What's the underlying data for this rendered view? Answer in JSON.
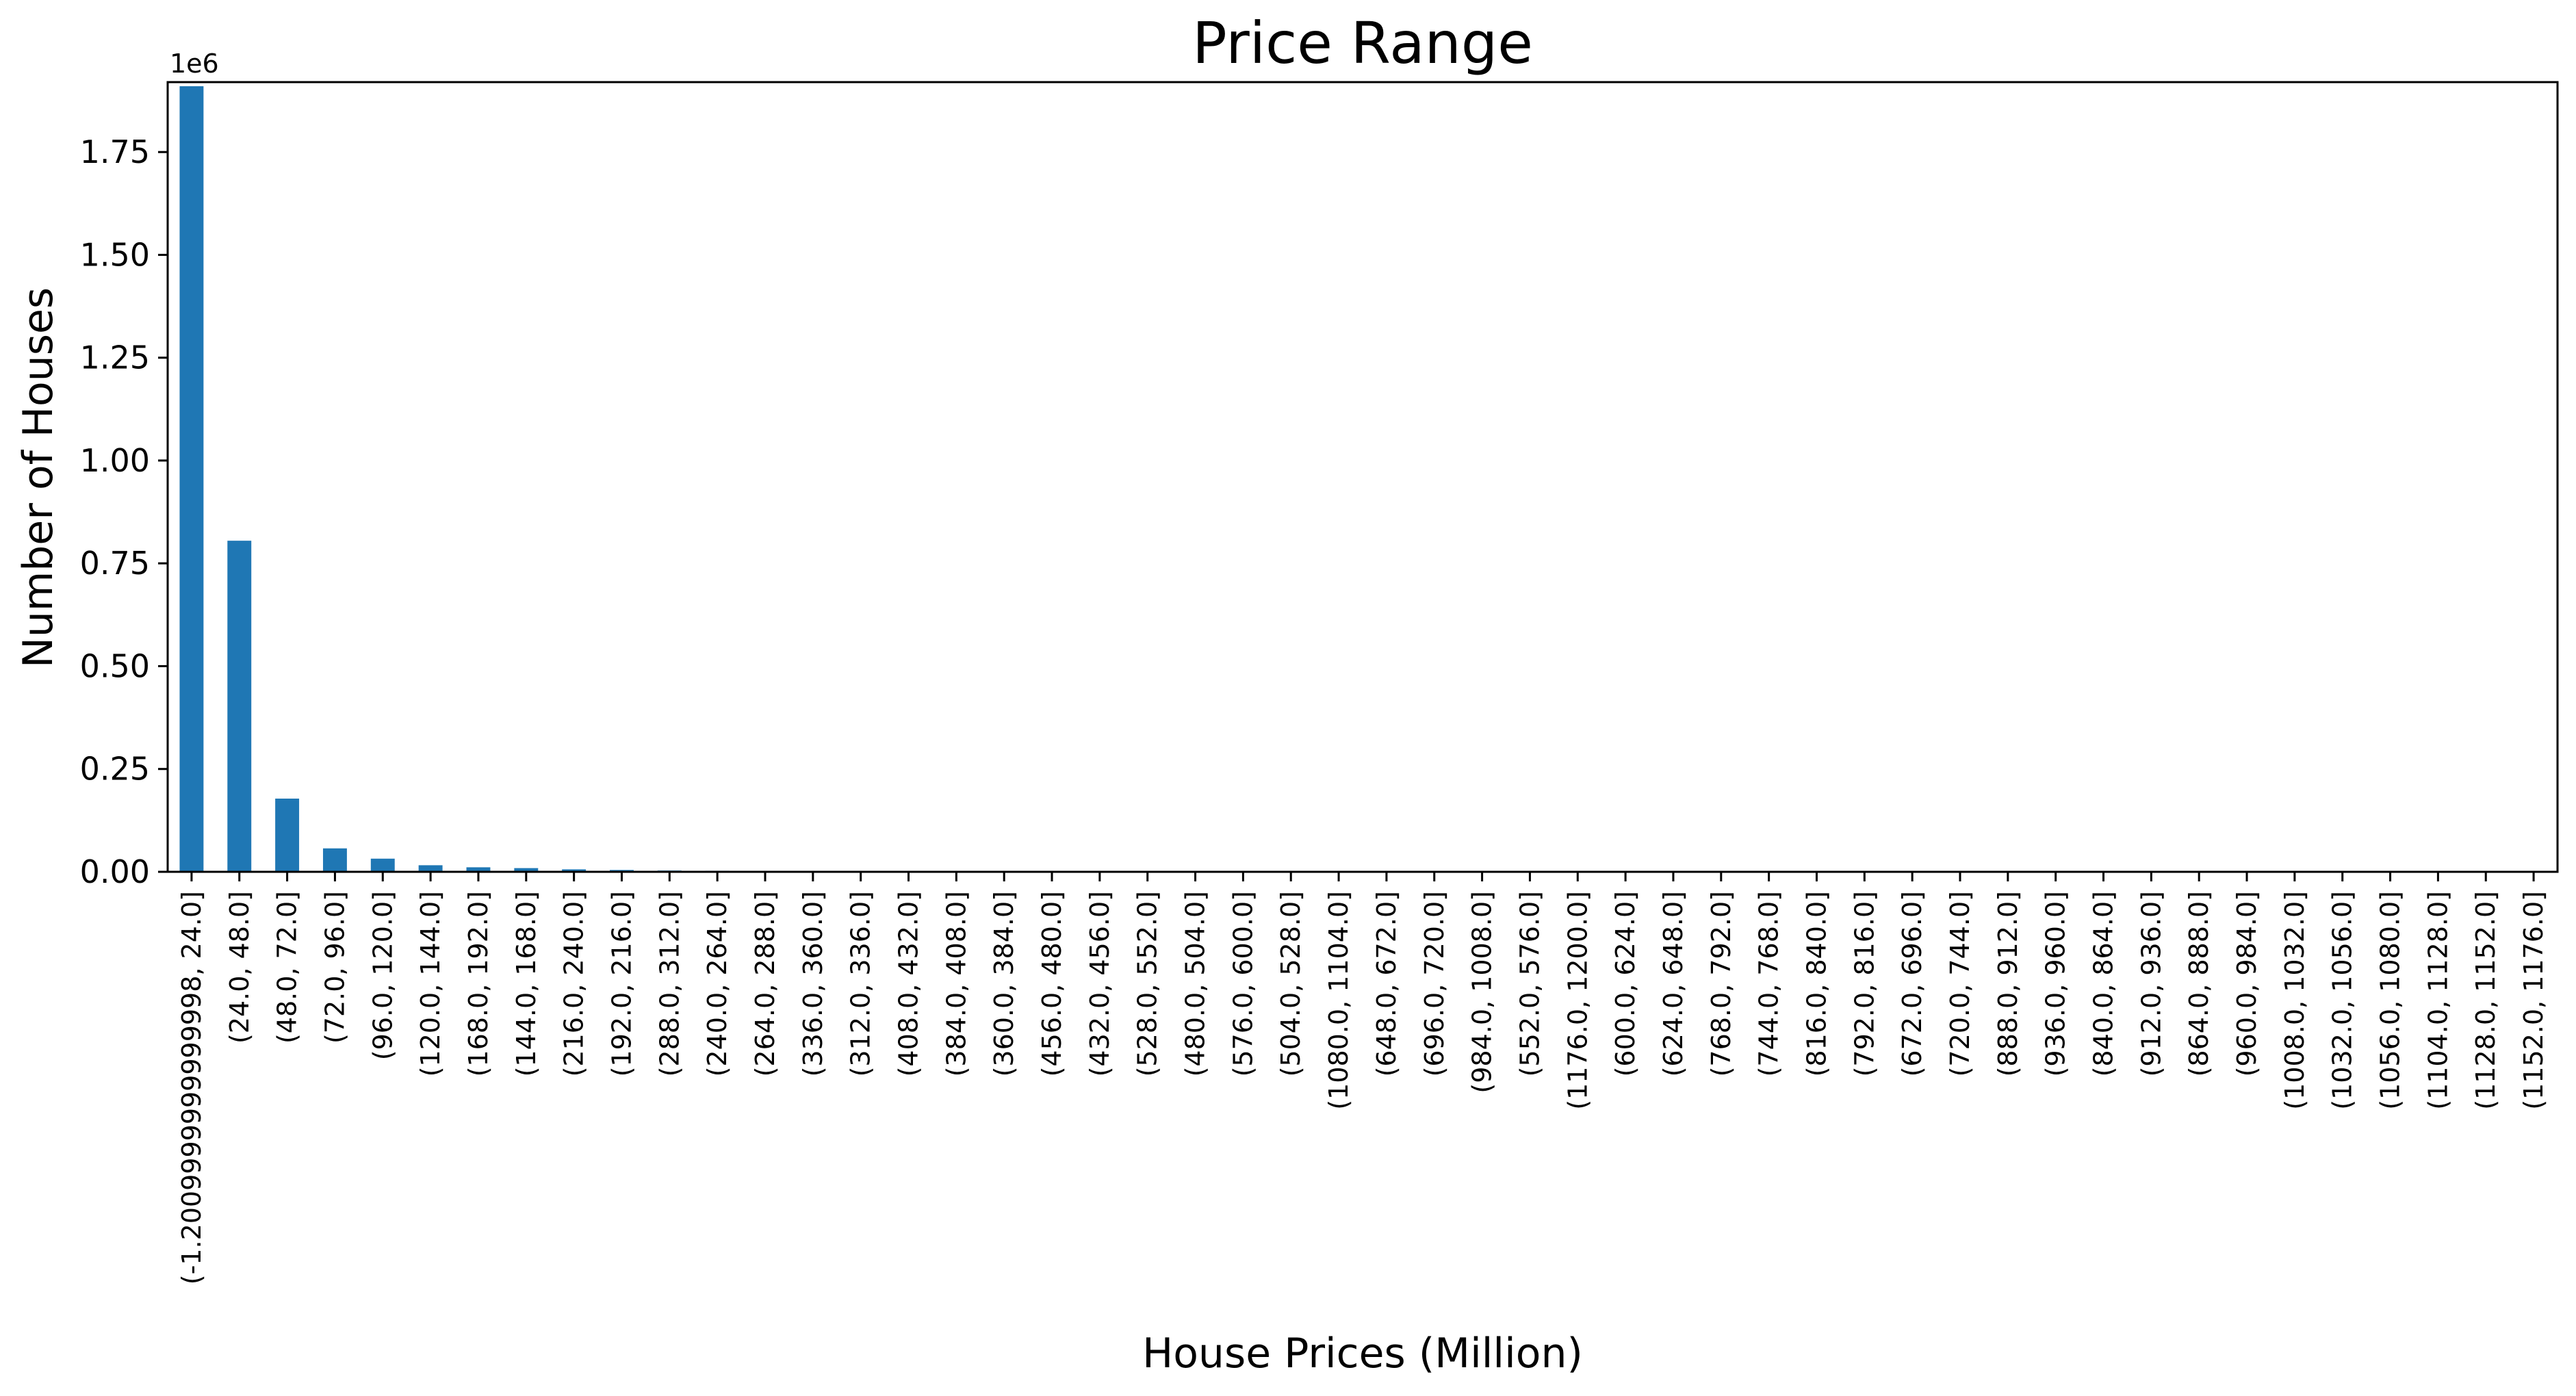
{
  "chart_data": {
    "type": "bar",
    "title": "Price Range",
    "xlabel": "House Prices (Million)",
    "ylabel": "Number of Houses",
    "y_offset_label": "1e6",
    "ylim": [
      0,
      1.92
    ],
    "yticks": [
      0.0,
      0.25,
      0.5,
      0.75,
      1.0,
      1.25,
      1.5,
      1.75
    ],
    "ytick_labels": [
      "0.00",
      "0.25",
      "0.50",
      "0.75",
      "1.00",
      "1.25",
      "1.50",
      "1.75"
    ],
    "grid": false,
    "legend": "none",
    "bar_color": "#1f77b4",
    "categories": [
      "(-1.2009999999999998, 24.0]",
      "(24.0, 48.0]",
      "(48.0, 72.0]",
      "(72.0, 96.0]",
      "(96.0, 120.0]",
      "(120.0, 144.0]",
      "(168.0, 192.0]",
      "(144.0, 168.0]",
      "(216.0, 240.0]",
      "(192.0, 216.0]",
      "(288.0, 312.0]",
      "(240.0, 264.0]",
      "(264.0, 288.0]",
      "(336.0, 360.0]",
      "(312.0, 336.0]",
      "(408.0, 432.0]",
      "(384.0, 408.0]",
      "(360.0, 384.0]",
      "(456.0, 480.0]",
      "(432.0, 456.0]",
      "(528.0, 552.0]",
      "(480.0, 504.0]",
      "(576.0, 600.0]",
      "(504.0, 528.0]",
      "(1080.0, 1104.0]",
      "(648.0, 672.0]",
      "(696.0, 720.0]",
      "(984.0, 1008.0]",
      "(552.0, 576.0]",
      "(1176.0, 1200.0]",
      "(600.0, 624.0]",
      "(624.0, 648.0]",
      "(768.0, 792.0]",
      "(744.0, 768.0]",
      "(816.0, 840.0]",
      "(792.0, 816.0]",
      "(672.0, 696.0]",
      "(720.0, 744.0]",
      "(888.0, 912.0]",
      "(936.0, 960.0]",
      "(840.0, 864.0]",
      "(912.0, 936.0]",
      "(864.0, 888.0]",
      "(960.0, 984.0]",
      "(1008.0, 1032.0]",
      "(1032.0, 1056.0]",
      "(1056.0, 1080.0]",
      "(1104.0, 1128.0]",
      "(1128.0, 1152.0]",
      "(1152.0, 1176.0]"
    ],
    "values": [
      1910000,
      805000,
      178000,
      57000,
      32000,
      16000,
      11000,
      9000,
      6000,
      4500,
      3200,
      2600,
      2000,
      1600,
      1300,
      1000,
      850,
      700,
      600,
      500,
      420,
      360,
      300,
      250,
      200,
      180,
      160,
      140,
      120,
      100,
      90,
      80,
      70,
      60,
      55,
      50,
      45,
      40,
      35,
      30,
      28,
      25,
      22,
      20,
      18,
      15,
      12,
      10,
      8,
      5
    ]
  }
}
